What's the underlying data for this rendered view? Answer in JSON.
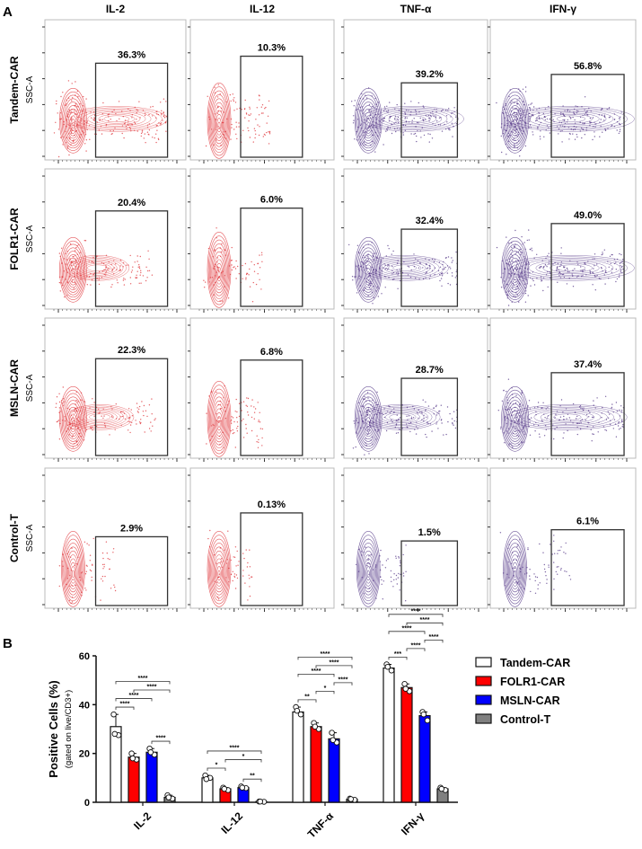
{
  "panel_a": {
    "label": "A",
    "columns": [
      "IL-2",
      "IL-12",
      "TNF-α",
      "IFN-γ"
    ],
    "rows": [
      "Tandem-CAR",
      "FOLR1-CAR",
      "MSLN-CAR",
      "Control-T"
    ],
    "y_axis_label": "SSC-A",
    "percentages": [
      [
        "36.3%",
        "10.3%",
        "39.2%",
        "56.8%"
      ],
      [
        "20.4%",
        "6.0%",
        "32.4%",
        "49.0%"
      ],
      [
        "22.3%",
        "6.8%",
        "28.7%",
        "37.4%"
      ],
      [
        "2.9%",
        "0.13%",
        "1.5%",
        "6.1%"
      ]
    ],
    "colors": {
      "IL-2": "#e03a3e",
      "IL-12": "#e03a3e",
      "TNF-α": "#5b3f8c",
      "IFN-γ": "#5b3f8c"
    }
  },
  "chart_data": {
    "label": "B",
    "type": "bar",
    "ylabel": "Positive Cells (%)",
    "ylabel_sub": "(gated on live/CD3+)",
    "ylim": [
      0,
      60
    ],
    "yticks": [
      0,
      20,
      40,
      60
    ],
    "categories": [
      "IL-2",
      "IL-12",
      "TNF-α",
      "IFN-γ"
    ],
    "series": [
      {
        "name": "Tandem-CAR",
        "color": "#ffffff",
        "values": [
          31,
          10,
          37,
          55
        ],
        "points": [
          [
            36,
            27.5,
            28
          ],
          [
            11,
            10,
            9.5
          ],
          [
            39,
            36,
            37.5
          ],
          [
            56.5,
            54,
            55.5
          ]
        ]
      },
      {
        "name": "FOLR1-CAR",
        "color": "#ff0000",
        "values": [
          18.5,
          5.5,
          31,
          47
        ],
        "points": [
          [
            20,
            17.5,
            18
          ],
          [
            6,
            5,
            5.5
          ],
          [
            32.5,
            30,
            31
          ],
          [
            48.5,
            45.5,
            46.5
          ]
        ]
      },
      {
        "name": "MSLN-CAR",
        "color": "#0000ff",
        "values": [
          20.5,
          6,
          26,
          35.5
        ],
        "points": [
          [
            22,
            19.5,
            20.5
          ],
          [
            6.5,
            5.8,
            6
          ],
          [
            28.5,
            24.5,
            25.5
          ],
          [
            37,
            33.5,
            36
          ]
        ]
      },
      {
        "name": "Control-T",
        "color": "#808080",
        "values": [
          2,
          0.3,
          1.2,
          5.5
        ],
        "points": [
          [
            2.9,
            1.5,
            2
          ],
          [
            0.3,
            0.2,
            0.3
          ],
          [
            1.5,
            1,
            1.3
          ],
          [
            6,
            5,
            5.5
          ]
        ]
      }
    ],
    "significance": [
      [
        {
          "a": 0,
          "b": 1,
          "label": "****"
        },
        {
          "a": 0,
          "b": 2,
          "label": "****"
        },
        {
          "a": 0,
          "b": 3,
          "label": "****"
        },
        {
          "a": 1,
          "b": 3,
          "label": "****"
        },
        {
          "a": 2,
          "b": 3,
          "label": "****"
        }
      ],
      [
        {
          "a": 0,
          "b": 1,
          "label": "*"
        },
        {
          "a": 0,
          "b": 3,
          "label": "****"
        },
        {
          "a": 1,
          "b": 3,
          "label": "*"
        },
        {
          "a": 2,
          "b": 3,
          "label": "**"
        }
      ],
      [
        {
          "a": 0,
          "b": 1,
          "label": "**"
        },
        {
          "a": 0,
          "b": 2,
          "label": "****"
        },
        {
          "a": 0,
          "b": 3,
          "label": "****"
        },
        {
          "a": 1,
          "b": 2,
          "label": "*"
        },
        {
          "a": 1,
          "b": 3,
          "label": "****"
        },
        {
          "a": 2,
          "b": 3,
          "label": "****"
        }
      ],
      [
        {
          "a": 0,
          "b": 1,
          "label": "***"
        },
        {
          "a": 0,
          "b": 2,
          "label": "****"
        },
        {
          "a": 0,
          "b": 3,
          "label": "****"
        },
        {
          "a": 1,
          "b": 2,
          "label": "****"
        },
        {
          "a": 1,
          "b": 3,
          "label": "****"
        },
        {
          "a": 2,
          "b": 3,
          "label": "****"
        }
      ]
    ],
    "legend": {
      "placement": "top-right",
      "entries": [
        "Tandem-CAR",
        "FOLR1-CAR",
        "MSLN-CAR",
        "Control-T"
      ]
    }
  }
}
